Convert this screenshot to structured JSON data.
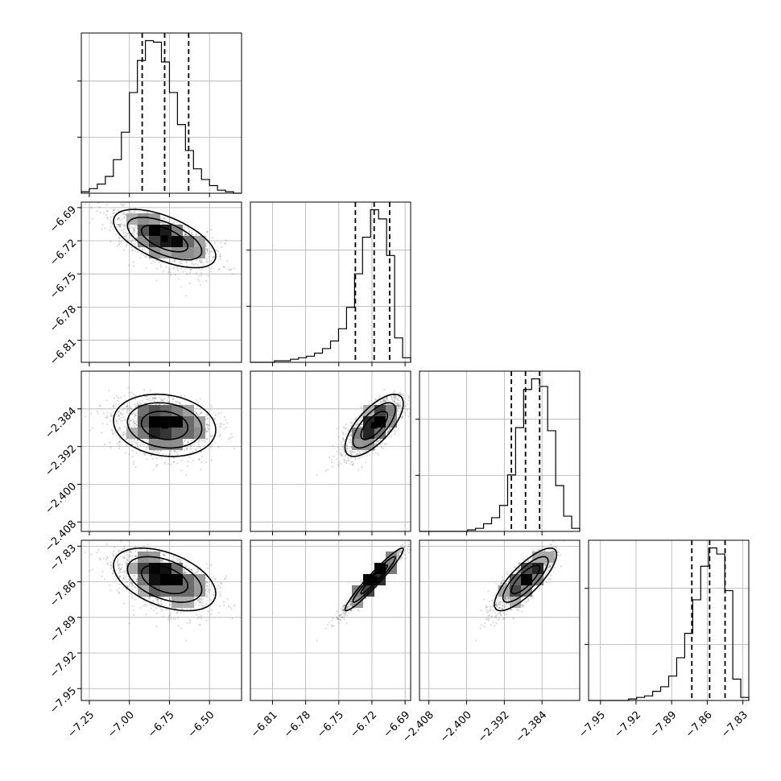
{
  "chart_data": {
    "type": "corner",
    "parameters": [
      {
        "range": [
          -7.3,
          -6.3
        ],
        "ticks": [
          -7.25,
          -7.0,
          -6.75,
          -6.5
        ],
        "tick_labels": [
          "−7.25",
          "−7.00",
          "−6.75",
          "−6.50"
        ],
        "mean": -6.78,
        "sd": 0.145,
        "quantiles": [
          -6.92,
          -6.78,
          -6.63
        ],
        "hist_ymax": 1.05
      },
      {
        "range": [
          -6.83,
          -6.685
        ],
        "ticks": [
          -6.81,
          -6.78,
          -6.75,
          -6.72,
          -6.69
        ],
        "tick_labels": [
          "−6.81",
          "−6.78",
          "−6.75",
          "−6.72",
          "−6.69"
        ],
        "mean": -6.718,
        "sd": 0.012,
        "skew": -2.5,
        "quantiles": [
          -6.735,
          -6.718,
          -6.704
        ],
        "hist_ymax": 1.05
      },
      {
        "range": [
          -2.41,
          -2.376
        ],
        "ticks": [
          -2.408,
          -2.4,
          -2.392,
          -2.384
        ],
        "tick_labels": [
          "−2.408",
          "−2.400",
          "−2.392",
          "−2.384"
        ],
        "mean": -2.3875,
        "sd": 0.003,
        "skew": -1.2,
        "quantiles": [
          -2.3905,
          -2.3875,
          -2.3845
        ],
        "hist_ymax": 1.05
      },
      {
        "range": [
          -7.96,
          -7.825
        ],
        "ticks": [
          -7.95,
          -7.92,
          -7.89,
          -7.86,
          -7.83
        ],
        "tick_labels": [
          "−7.95",
          "−7.92",
          "−7.89",
          "−7.86",
          "−7.83"
        ],
        "mean": -7.858,
        "sd": 0.012,
        "skew": -2.5,
        "quantiles": [
          -7.873,
          -7.858,
          -7.845
        ],
        "hist_ymax": 1.05
      }
    ],
    "histogram_counts": [
      [
        1,
        3,
        6,
        11,
        22,
        40,
        66,
        87,
        100,
        99,
        86,
        66,
        45,
        28,
        16,
        9,
        5,
        2,
        1,
        0
      ],
      [
        0,
        0,
        0,
        1,
        1,
        2,
        3,
        4,
        6,
        9,
        14,
        22,
        36,
        58,
        82,
        100,
        94,
        70,
        16,
        3
      ],
      [
        0,
        0,
        0,
        0,
        0,
        0,
        1,
        2,
        5,
        9,
        17,
        37,
        68,
        93,
        100,
        95,
        66,
        30,
        10,
        2
      ],
      [
        0,
        0,
        0,
        0,
        0,
        1,
        2,
        3,
        6,
        9,
        16,
        28,
        44,
        66,
        88,
        100,
        96,
        72,
        14,
        2
      ]
    ],
    "correlations": {
      "1-0": -0.6,
      "2-0": -0.15,
      "2-1": 0.7,
      "3-0": -0.45,
      "3-1": 0.96,
      "3-2": 0.8
    },
    "grid": true,
    "quantile_lines": "dashed",
    "scatter_points_per_panel": 1600
  }
}
